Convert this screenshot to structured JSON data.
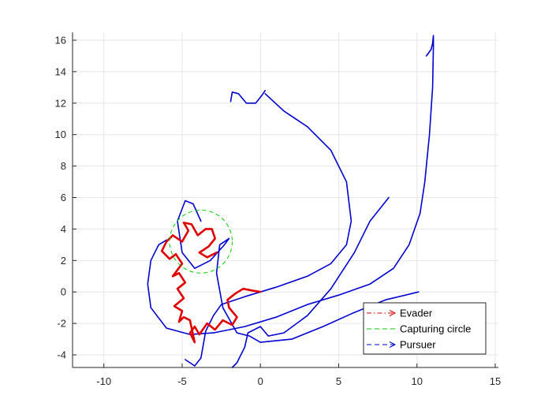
{
  "chart_data": {
    "type": "line",
    "title": "",
    "xlabel": "",
    "ylabel": "",
    "xlim": [
      -12,
      15.2
    ],
    "ylim": [
      -4.8,
      16.5
    ],
    "xticks": [
      -10,
      -5,
      0,
      5,
      10,
      15
    ],
    "yticks": [
      -4,
      -2,
      0,
      2,
      4,
      6,
      8,
      10,
      12,
      14,
      16
    ],
    "grid": true,
    "legend_position": "bottom-right",
    "legend": [
      {
        "label": "Evader",
        "style": "dash-dot",
        "color": "#d40000",
        "marker": "arrow"
      },
      {
        "label": "Capturing circle",
        "style": "dashed",
        "color": "#00cc00"
      },
      {
        "label": "Pursuer",
        "style": "dashed",
        "color": "#0000d0",
        "marker": "arrow"
      }
    ],
    "capturing_circle": {
      "center": [
        -3.8,
        3.2
      ],
      "radius": 2.0,
      "color": "#00cc00"
    },
    "series": [
      {
        "role": "pursuer",
        "color": "#0000d0",
        "points": [
          [
            10.6,
            15.0
          ],
          [
            10.9,
            15.4
          ],
          [
            11.0,
            15.8
          ],
          [
            11.05,
            16.3
          ],
          [
            11.05,
            15.6
          ],
          [
            11.0,
            13.0
          ],
          [
            10.8,
            10.0
          ],
          [
            10.5,
            7.0
          ],
          [
            10.2,
            5.0
          ],
          [
            9.5,
            3.0
          ],
          [
            8.5,
            1.5
          ],
          [
            7.0,
            0.5
          ],
          [
            5.0,
            -0.2
          ],
          [
            3.0,
            -0.8
          ],
          [
            1.0,
            -1.6
          ],
          [
            -1.0,
            -2.2
          ],
          [
            -3.0,
            -2.6
          ],
          [
            -4.5,
            -2.7
          ],
          [
            -6.0,
            -2.3
          ],
          [
            -7.0,
            -1.0
          ],
          [
            -7.2,
            0.5
          ],
          [
            -7.0,
            2.0
          ],
          [
            -6.5,
            3.0
          ],
          [
            -6.0,
            3.3
          ]
        ]
      },
      {
        "role": "pursuer",
        "color": "#0000d0",
        "points": [
          [
            0.3,
            12.6
          ],
          [
            1.5,
            11.5
          ],
          [
            3.0,
            10.5
          ],
          [
            4.5,
            9.0
          ],
          [
            5.5,
            7.0
          ],
          [
            5.8,
            4.5
          ],
          [
            5.5,
            3.0
          ],
          [
            4.5,
            1.8
          ],
          [
            3.0,
            1.0
          ],
          [
            1.0,
            0.3
          ],
          [
            -1.0,
            -0.3
          ],
          [
            -2.5,
            -0.8
          ],
          [
            -3.0,
            -1.5
          ],
          [
            -3.5,
            -2.5
          ],
          [
            -3.8,
            -4.2
          ],
          [
            -4.2,
            -4.7
          ],
          [
            -4.8,
            -4.3
          ]
        ]
      },
      {
        "role": "pursuer",
        "color": "#0000d0",
        "points": [
          [
            -1.9,
            12.1
          ],
          [
            -1.8,
            12.7
          ],
          [
            -1.4,
            12.6
          ],
          [
            -0.9,
            12.0
          ],
          [
            -0.3,
            12.0
          ],
          [
            0.1,
            12.5
          ],
          [
            0.3,
            12.8
          ]
        ]
      },
      {
        "role": "pursuer",
        "color": "#0000d0",
        "points": [
          [
            8.2,
            6.0
          ],
          [
            7.0,
            4.5
          ],
          [
            6.0,
            2.5
          ],
          [
            4.5,
            0.2
          ],
          [
            3.0,
            -1.5
          ],
          [
            1.5,
            -2.6
          ],
          [
            0.5,
            -2.8
          ],
          [
            0.0,
            -2.2
          ],
          [
            -0.8,
            -2.6
          ],
          [
            -1.0,
            -3.5
          ],
          [
            -1.5,
            -4.5
          ],
          [
            -1.8,
            -4.8
          ]
        ]
      },
      {
        "role": "pursuer",
        "color": "#0000d0",
        "points": [
          [
            10.1,
            0.0
          ],
          [
            8.0,
            -0.5
          ],
          [
            6.0,
            -1.3
          ],
          [
            4.0,
            -2.2
          ],
          [
            2.0,
            -3.0
          ],
          [
            0.0,
            -3.2
          ],
          [
            -0.7,
            -2.8
          ],
          [
            -1.5,
            -2.6
          ],
          [
            -2.4,
            -1.0
          ],
          [
            -2.8,
            1.2
          ],
          [
            -2.6,
            3.0
          ],
          [
            -2.0,
            3.4
          ],
          [
            -2.3,
            3.0
          ],
          [
            -3.2,
            2.0
          ],
          [
            -4.2,
            1.5
          ],
          [
            -5.0,
            2.5
          ],
          [
            -5.3,
            4.5
          ],
          [
            -4.8,
            5.8
          ],
          [
            -4.3,
            5.6
          ],
          [
            -3.8,
            4.5
          ]
        ]
      },
      {
        "role": "evader",
        "color": "#e00000",
        "points": [
          [
            0.0,
            0.0
          ],
          [
            -0.6,
            0.1
          ],
          [
            -1.1,
            0.2
          ],
          [
            -1.6,
            -0.1
          ],
          [
            -2.1,
            -0.5
          ],
          [
            -2.0,
            -1.0
          ],
          [
            -1.5,
            -1.6
          ],
          [
            -1.8,
            -2.1
          ],
          [
            -2.4,
            -1.8
          ],
          [
            -2.9,
            -2.4
          ],
          [
            -3.4,
            -2.0
          ],
          [
            -3.9,
            -2.7
          ],
          [
            -4.2,
            -2.2
          ],
          [
            -4.5,
            -2.6
          ],
          [
            -4.2,
            -3.2
          ],
          [
            -4.5,
            -1.8
          ],
          [
            -4.9,
            -1.6
          ],
          [
            -5.2,
            -1.9
          ],
          [
            -5.0,
            -1.2
          ],
          [
            -5.5,
            -0.9
          ],
          [
            -4.9,
            -0.4
          ],
          [
            -5.3,
            0.2
          ],
          [
            -4.8,
            0.6
          ],
          [
            -5.2,
            1.2
          ],
          [
            -5.6,
            1.0
          ],
          [
            -5.0,
            1.8
          ],
          [
            -5.4,
            2.4
          ],
          [
            -5.8,
            2.1
          ],
          [
            -6.3,
            2.6
          ],
          [
            -6.0,
            3.2
          ],
          [
            -5.6,
            3.6
          ],
          [
            -5.0,
            3.2
          ],
          [
            -4.6,
            3.9
          ],
          [
            -4.9,
            4.4
          ],
          [
            -4.4,
            4.3
          ],
          [
            -4.0,
            3.6
          ],
          [
            -3.5,
            4.0
          ],
          [
            -3.1,
            4.0
          ],
          [
            -2.9,
            3.4
          ],
          [
            -3.3,
            2.9
          ],
          [
            -3.9,
            2.5
          ],
          [
            -3.4,
            2.2
          ],
          [
            -2.8,
            2.5
          ]
        ]
      }
    ]
  }
}
